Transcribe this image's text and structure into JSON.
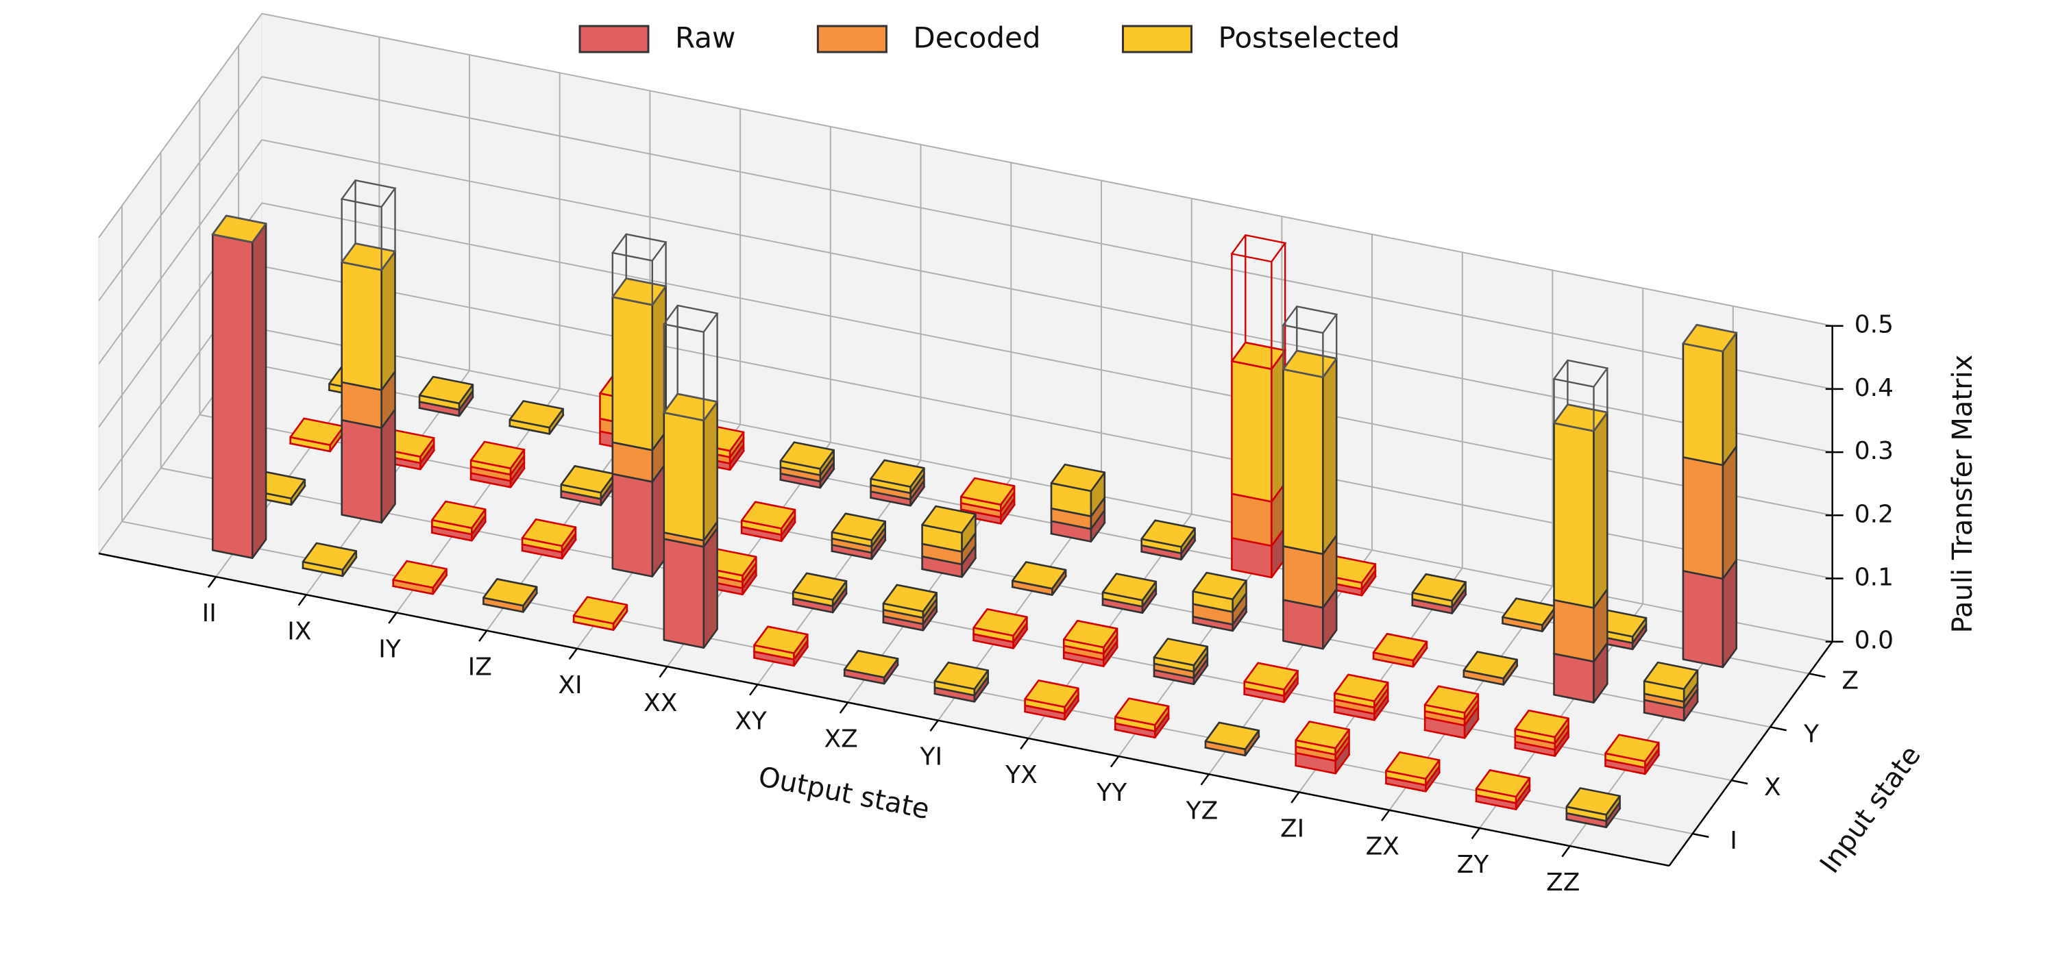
{
  "chart_data": {
    "type": "bar3d",
    "x_label": "Output state",
    "y_label": "Input state",
    "z_label": "Pauli Transfer Matrix",
    "categories": [
      "II",
      "IX",
      "IY",
      "IZ",
      "XI",
      "XX",
      "XY",
      "XZ",
      "YI",
      "YX",
      "YY",
      "YZ",
      "ZI",
      "ZX",
      "ZY",
      "ZZ"
    ],
    "y_categories": [
      "I",
      "X",
      "Y",
      "Z"
    ],
    "series": [
      {
        "name": "Raw",
        "color": "#e0605f",
        "values": [
          [
            0.5,
            0,
            0,
            0,
            0,
            0.16,
            -0.01,
            0.01,
            0.01,
            -0.01,
            -0.01,
            0,
            -0.02,
            -0.01,
            -0.01,
            0.01
          ],
          [
            0,
            0.15,
            -0.01,
            -0.01,
            0.15,
            -0.01,
            0.01,
            0.01,
            -0.01,
            -0.01,
            0.01,
            -0.01,
            -0.01,
            -0.02,
            -0.01,
            -0.01
          ],
          [
            0,
            -0.01,
            -0.01,
            0.01,
            -0.01,
            -0.01,
            0.01,
            0.02,
            0,
            0.01,
            0.01,
            0.065,
            0,
            0,
            0.065,
            0.02
          ],
          [
            0,
            0.01,
            0,
            -0.02,
            -0.01,
            0.01,
            0.01,
            -0.01,
            0.02,
            0.01,
            -0.05,
            -0.01,
            0.01,
            0,
            0.01,
            0.14
          ]
        ]
      },
      {
        "name": "Decoded",
        "color": "#f5923e",
        "values": [
          [
            0.5,
            0,
            -0.01,
            0.01,
            0,
            0.17,
            -0.01,
            0.01,
            0.01,
            -0.01,
            -0.01,
            0.01,
            -0.03,
            -0.01,
            -0.01,
            0.01
          ],
          [
            0,
            0.21,
            -0.01,
            -0.01,
            0.2,
            -0.02,
            0.01,
            0.02,
            -0.01,
            -0.02,
            0.02,
            -0.01,
            -0.02,
            -0.03,
            -0.02,
            -0.01
          ],
          [
            0,
            -0.01,
            -0.02,
            0.01,
            -0.02,
            -0.01,
            0.02,
            0.04,
            0.01,
            0.01,
            0.03,
            0.15,
            -0.01,
            0.01,
            0.15,
            0.03
          ],
          [
            0,
            0.01,
            0,
            -0.04,
            -0.02,
            0.02,
            0.02,
            -0.02,
            0.04,
            0.01,
            -0.12,
            -0.01,
            0.01,
            0.01,
            0.01,
            0.32
          ]
        ]
      },
      {
        "name": "Postselected",
        "color": "#fcc72a",
        "values": [
          [
            0.5,
            0.01,
            -0.01,
            0.01,
            -0.01,
            0.36,
            -0.02,
            0.01,
            0.02,
            -0.02,
            -0.02,
            0.01,
            -0.04,
            -0.02,
            -0.02,
            0.02
          ],
          [
            0.01,
            0.4,
            -0.02,
            -0.02,
            0.43,
            -0.03,
            0.02,
            0.03,
            -0.02,
            -0.03,
            0.03,
            -0.02,
            -0.03,
            -0.04,
            -0.03,
            -0.02
          ],
          [
            -0.01,
            -0.02,
            -0.03,
            0.02,
            -0.03,
            -0.02,
            0.03,
            0.07,
            0.01,
            0.02,
            0.05,
            0.43,
            -0.01,
            0.01,
            0.43,
            0.05
          ],
          [
            0.01,
            0.02,
            0.01,
            -0.08,
            -0.03,
            0.03,
            0.03,
            -0.03,
            0.08,
            0.02,
            -0.33,
            -0.02,
            0.02,
            0.01,
            0.02,
            0.5
          ]
        ]
      }
    ],
    "ideal_values": [
      [
        0.5,
        0,
        0,
        0,
        0,
        0.5,
        0,
        0,
        0,
        0,
        0,
        0,
        0,
        0,
        0,
        0
      ],
      [
        0,
        0.5,
        0,
        0,
        0.5,
        0,
        0,
        0,
        0,
        0,
        0,
        0,
        0,
        0,
        0,
        0
      ],
      [
        0,
        0,
        0,
        0,
        0,
        0,
        0,
        0,
        0,
        0,
        0,
        0.5,
        0,
        0,
        0.5,
        0
      ],
      [
        0,
        0,
        0,
        0,
        0,
        0,
        0,
        0,
        0,
        0,
        -0.5,
        0,
        0,
        0,
        0,
        0.5
      ]
    ],
    "ideal_color": "#555555",
    "edge_color": "#333333",
    "negative_color": "#d40000",
    "zlim": [
      0,
      0.5
    ],
    "zticks": [
      {
        "value": 0,
        "label": "0.0"
      },
      0.1,
      0.2,
      0.3,
      0.4,
      0.5
    ],
    "grid": true,
    "legend": "top"
  }
}
